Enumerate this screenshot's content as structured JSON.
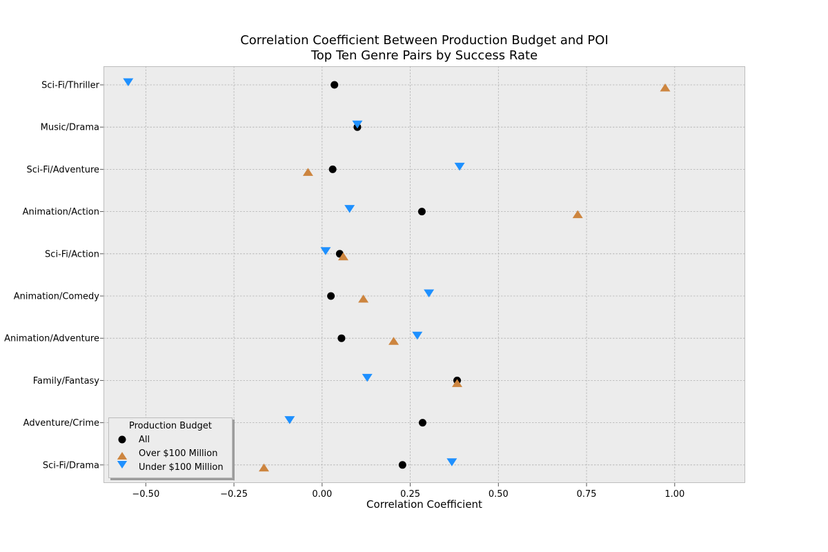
{
  "chart_data": {
    "type": "scatter",
    "title": [
      "Correlation Coefficient Between Production Budget and POI",
      "Top Ten Genre Pairs by Success Rate"
    ],
    "xlabel": "Correlation Coefficient",
    "ylabel": "",
    "xlim": [
      -0.62,
      1.2
    ],
    "x_ticks": [
      -0.5,
      -0.25,
      0.0,
      0.25,
      0.5,
      0.75,
      1.0
    ],
    "x_tick_labels": [
      "−0.50",
      "−0.25",
      "0.00",
      "0.25",
      "0.50",
      "0.75",
      "1.00"
    ],
    "categories": [
      "Sci-Fi/Thriller",
      "Music/Drama",
      "Sci-Fi/Adventure",
      "Animation/Action",
      "Sci-Fi/Action",
      "Animation/Comedy",
      "Animation/Adventure",
      "Family/Fantasy",
      "Adventure/Crime",
      "Sci-Fi/Drama"
    ],
    "grid": true,
    "legend_position": "lower-left",
    "legend_title": "Production Budget",
    "series": [
      {
        "name": "All",
        "marker": "circle",
        "color": "#000000",
        "values": [
          0.035,
          0.1,
          0.03,
          0.283,
          0.05,
          0.025,
          0.055,
          0.383,
          0.285,
          0.228
        ]
      },
      {
        "name": "Over $100 Million",
        "marker": "triangle-up",
        "color": "#cd853f",
        "values": [
          0.973,
          null,
          -0.04,
          0.725,
          0.06,
          0.117,
          0.203,
          0.383,
          null,
          -0.165
        ]
      },
      {
        "name": "Under $100 Million",
        "marker": "triangle-down",
        "color": "#1e90ff",
        "values": [
          -0.55,
          0.1,
          0.39,
          0.078,
          0.01,
          0.303,
          0.27,
          0.128,
          -0.092,
          0.368
        ]
      }
    ]
  }
}
